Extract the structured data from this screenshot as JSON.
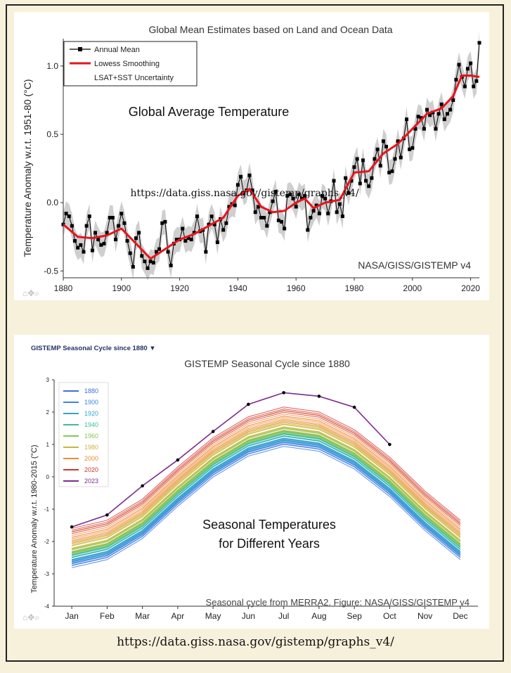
{
  "footer_source": "https://data.giss.nasa.gov/gistemp/graphs_v4/",
  "chart_data": [
    {
      "type": "line",
      "title": "Global Mean Estimates based on Land and Ocean Data",
      "ylabel": "Temperature Anomaly w.r.t. 1951-80 (°C)",
      "xlim": [
        1880,
        2023
      ],
      "ylim": [
        -0.55,
        1.2
      ],
      "x_ticks": [
        "1880",
        "1900",
        "1920",
        "1940",
        "1960",
        "1980",
        "2000",
        "2020"
      ],
      "y_ticks": [
        "-0.5",
        "0.0",
        "0.5",
        "1.0"
      ],
      "legend": {
        "placement": "top-left",
        "entries": [
          "Annual Mean",
          "Lowess Smoothing",
          "LSAT+SST Uncertainty"
        ]
      },
      "annotation_main": "Global Average Temperature",
      "annotation_url": "https://data.giss.nasa.gov/gistemp/graphs_v4/",
      "credit": "NASA/GISS/GISTEMP v4",
      "colors": {
        "annual": "#000000",
        "smooth": "#e8141c",
        "uncertainty": "#cfcfcf"
      },
      "annual_x_start": 1880,
      "annual_values": [
        -0.16,
        -0.08,
        -0.1,
        -0.17,
        -0.28,
        -0.33,
        -0.31,
        -0.36,
        -0.17,
        -0.1,
        -0.35,
        -0.22,
        -0.27,
        -0.31,
        -0.3,
        -0.22,
        -0.11,
        -0.11,
        -0.27,
        -0.17,
        -0.08,
        -0.15,
        -0.28,
        -0.37,
        -0.47,
        -0.26,
        -0.22,
        -0.39,
        -0.43,
        -0.48,
        -0.43,
        -0.44,
        -0.36,
        -0.34,
        -0.15,
        -0.14,
        -0.36,
        -0.46,
        -0.3,
        -0.27,
        -0.27,
        -0.19,
        -0.28,
        -0.26,
        -0.27,
        -0.22,
        -0.1,
        -0.21,
        -0.2,
        -0.36,
        -0.16,
        -0.1,
        -0.16,
        -0.29,
        -0.12,
        -0.2,
        -0.15,
        -0.03,
        -0.01,
        -0.02,
        0.13,
        0.19,
        0.07,
        0.09,
        0.2,
        0.09,
        -0.07,
        -0.03,
        -0.11,
        -0.11,
        -0.17,
        -0.07,
        0.01,
        0.08,
        -0.13,
        -0.14,
        -0.19,
        0.05,
        0.06,
        0.03,
        -0.03,
        0.06,
        0.03,
        0.05,
        -0.2,
        -0.11,
        -0.06,
        -0.02,
        -0.08,
        0.05,
        0.03,
        -0.08,
        0.01,
        0.16,
        -0.07,
        -0.01,
        -0.1,
        0.18,
        0.07,
        0.16,
        0.26,
        0.32,
        0.14,
        0.31,
        0.16,
        0.12,
        0.18,
        0.32,
        0.39,
        0.27,
        0.45,
        0.41,
        0.22,
        0.23,
        0.32,
        0.45,
        0.33,
        0.47,
        0.61,
        0.39,
        0.4,
        0.54,
        0.63,
        0.62,
        0.54,
        0.68,
        0.64,
        0.66,
        0.54,
        0.65,
        0.72,
        0.61,
        0.65,
        0.68,
        0.75,
        0.9,
        1.01,
        0.92,
        0.85,
        0.98,
        1.02,
        0.85,
        0.89,
        1.17
      ],
      "smooth_points": [
        [
          1880,
          -0.16
        ],
        [
          1885,
          -0.25
        ],
        [
          1890,
          -0.26
        ],
        [
          1895,
          -0.24
        ],
        [
          1900,
          -0.19
        ],
        [
          1905,
          -0.3
        ],
        [
          1910,
          -0.41
        ],
        [
          1915,
          -0.34
        ],
        [
          1920,
          -0.27
        ],
        [
          1925,
          -0.23
        ],
        [
          1930,
          -0.17
        ],
        [
          1935,
          -0.11
        ],
        [
          1940,
          0.05
        ],
        [
          1944,
          0.1
        ],
        [
          1948,
          -0.03
        ],
        [
          1952,
          -0.07
        ],
        [
          1956,
          -0.06
        ],
        [
          1960,
          0.0
        ],
        [
          1963,
          0.03
        ],
        [
          1966,
          -0.04
        ],
        [
          1970,
          0.0
        ],
        [
          1975,
          0.02
        ],
        [
          1980,
          0.22
        ],
        [
          1985,
          0.23
        ],
        [
          1990,
          0.36
        ],
        [
          1995,
          0.43
        ],
        [
          2000,
          0.54
        ],
        [
          2005,
          0.65
        ],
        [
          2010,
          0.69
        ],
        [
          2014,
          0.78
        ],
        [
          2017,
          0.93
        ],
        [
          2020,
          0.93
        ],
        [
          2023,
          0.92
        ]
      ]
    },
    {
      "type": "line",
      "title": "GISTEMP Seasonal Cycle since 1880",
      "header": "GISTEMP Seasonal Cycle since 1880 ▼",
      "ylabel": "Temperature Anomaly w.r.t. 1980-2015 (°C)",
      "ylim": [
        -4,
        3
      ],
      "y_ticks": [
        "-4",
        "-3",
        "-2",
        "-1",
        "0",
        "1",
        "2",
        "3"
      ],
      "categories": [
        "Jan",
        "Feb",
        "Mar",
        "Apr",
        "May",
        "Jun",
        "Jul",
        "Aug",
        "Sep",
        "Oct",
        "Nov",
        "Dec"
      ],
      "legend": {
        "placement": "top-left"
      },
      "annotation_main_1": "Seasonal Temperatures",
      "annotation_main_2": "for Different Years",
      "credit": "Seasonal cycle from MERRA2. Figure: NASA/GISS/GISTEMP v4",
      "series": [
        {
          "name": "1880",
          "color": "#3d6fe0",
          "values": [
            -2.75,
            -2.5,
            -1.85,
            -0.85,
            0.05,
            0.7,
            1.0,
            0.85,
            0.3,
            -0.55,
            -1.6,
            -2.5
          ]
        },
        {
          "name": "1900",
          "color": "#3a86e0",
          "values": [
            -2.65,
            -2.4,
            -1.75,
            -0.75,
            0.15,
            0.8,
            1.1,
            0.95,
            0.4,
            -0.45,
            -1.5,
            -2.4
          ]
        },
        {
          "name": "1920",
          "color": "#2fa7c9",
          "values": [
            -2.55,
            -2.3,
            -1.65,
            -0.65,
            0.25,
            0.9,
            1.2,
            1.05,
            0.5,
            -0.35,
            -1.4,
            -2.3
          ]
        },
        {
          "name": "1940",
          "color": "#3cbca0",
          "values": [
            -2.4,
            -2.15,
            -1.5,
            -0.5,
            0.4,
            1.05,
            1.35,
            1.2,
            0.65,
            -0.2,
            -1.25,
            -2.15
          ]
        },
        {
          "name": "1960",
          "color": "#86c657",
          "values": [
            -2.35,
            -2.1,
            -1.45,
            -0.45,
            0.45,
            1.1,
            1.4,
            1.25,
            0.7,
            -0.15,
            -1.2,
            -2.1
          ]
        },
        {
          "name": "1980",
          "color": "#c9b73a",
          "values": [
            -2.15,
            -1.9,
            -1.25,
            -0.25,
            0.65,
            1.3,
            1.6,
            1.45,
            0.9,
            0.05,
            -1.0,
            -1.9
          ]
        },
        {
          "name": "2000",
          "color": "#ef8a34",
          "values": [
            -1.9,
            -1.65,
            -1.0,
            0.0,
            0.9,
            1.55,
            1.85,
            1.7,
            1.15,
            0.3,
            -0.75,
            -1.65
          ]
        },
        {
          "name": "2020",
          "color": "#d0342c",
          "values": [
            -1.55,
            -1.3,
            -0.65,
            0.35,
            1.25,
            1.9,
            2.2,
            2.05,
            1.5,
            0.65,
            -0.4,
            -1.3
          ]
        },
        {
          "name": "2023",
          "color": "#7a2d8e",
          "values": [
            -1.55,
            -1.18,
            -0.28,
            0.52,
            1.4,
            2.24,
            2.6,
            2.49,
            2.15,
            1.0,
            null,
            null
          ]
        }
      ]
    }
  ]
}
